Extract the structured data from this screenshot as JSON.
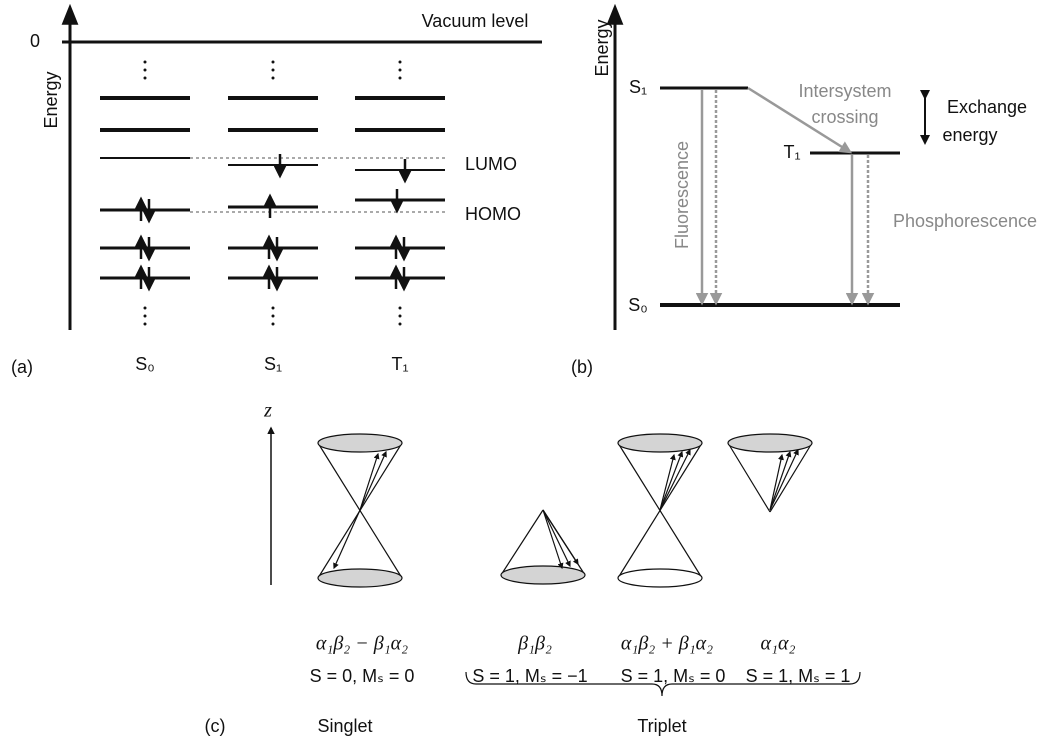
{
  "panel_a": {
    "label": "(a)",
    "zero_label": "0",
    "vacuum_level": "Vacuum level",
    "axis_label": "Energy",
    "lumo": "LUMO",
    "homo": "HOMO",
    "states": [
      "S₀",
      "S₁",
      "T₁"
    ]
  },
  "panel_b": {
    "label": "(b)",
    "axis_label": "Energy",
    "s1": "S₁",
    "t1": "T₁",
    "s0": "S₀",
    "isc": [
      "Intersystem",
      "crossing"
    ],
    "exchange": [
      "Exchange",
      "energy"
    ],
    "fluorescence": "Fluorescence",
    "phosphorescence": "Phosphorescence"
  },
  "panel_c": {
    "label": "(c)",
    "axis_label": "z",
    "wavefunctions": [
      "α₁β₂ − β₁α₂",
      "β₁β₂",
      "α₁β₂ + β₁α₂",
      "α₁α₂"
    ],
    "spins": [
      "S = 0, Mₛ = 0",
      "S = 1, Mₛ = −1",
      "S = 1, Mₛ = 0",
      "S = 1, Mₛ = 1"
    ],
    "singlet": "Singlet",
    "triplet": "Triplet"
  }
}
